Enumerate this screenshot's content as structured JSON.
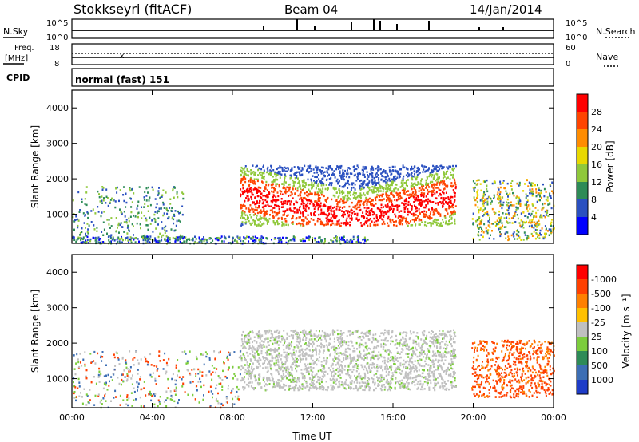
{
  "header": {
    "station": "Stokkseyri (fitACF)",
    "beam": "Beam 04",
    "date": "14/Jan/2014"
  },
  "noise_panel": {
    "left_label": "N.Sky",
    "right_label": "N.Search",
    "ticks_left": [
      "10^5",
      "10^0"
    ],
    "ticks_right": [
      "10^5",
      "10^0"
    ],
    "left_legend_style": "solid",
    "right_legend_style": "dotted"
  },
  "freq_panel": {
    "left_label_line1": "Freq.",
    "left_label_line2": "[MHz]",
    "right_label": "Nave",
    "ticks_left": [
      "18",
      "8"
    ],
    "ticks_right": [
      "60",
      "0"
    ]
  },
  "cpid": {
    "label": "CPID",
    "value": "normal (fast) 151"
  },
  "chart_data": [
    {
      "type": "heatmap",
      "name": "power",
      "ylabel": "Slant Range [km]",
      "colorbar_label": "Power [dB]",
      "ylim": [
        180,
        4500
      ],
      "y_ticks": [
        1000,
        2000,
        3000,
        4000
      ],
      "colorbar_ticks": [
        "4",
        "8",
        "12",
        "16",
        "20",
        "24",
        "28"
      ],
      "colorbar_colors": [
        "#0000ff",
        "#2a50c0",
        "#2e8b57",
        "#8fc83a",
        "#e8d800",
        "#ff8c00",
        "#ff4400",
        "#ff0000"
      ]
    },
    {
      "type": "heatmap",
      "name": "velocity",
      "xlabel": "Time UT",
      "ylabel": "Slant Range [km]",
      "colorbar_label": "Velocity [m s⁻¹]",
      "ylim": [
        180,
        4500
      ],
      "y_ticks": [
        1000,
        2000,
        3000,
        4000
      ],
      "colorbar_ticks": [
        "1000",
        "500",
        "100",
        "25",
        "-25",
        "-100",
        "-500",
        "-1000"
      ],
      "colorbar_colors": [
        "#1e3cc8",
        "#3c6eb4",
        "#2e8b57",
        "#7ccd3c",
        "#c0c0c0",
        "#ffc000",
        "#ff8000",
        "#ff4000",
        "#ff0000"
      ],
      "x_ticks": [
        "00:00",
        "04:00",
        "08:00",
        "12:00",
        "16:00",
        "20:00",
        "00:00"
      ]
    }
  ]
}
